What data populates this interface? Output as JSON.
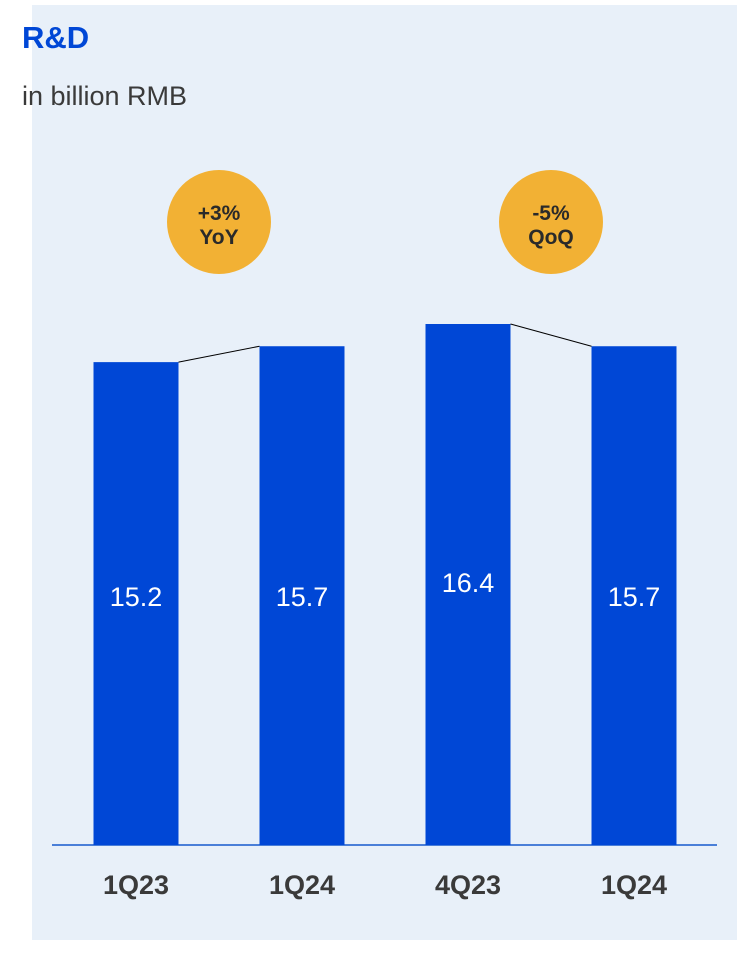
{
  "title": "R&D",
  "subtitle": "in billion RMB",
  "colors": {
    "bar": "#0047d6",
    "badge": "#f2b134",
    "panel": "#e8f0f9",
    "baseline": "#4a7fd8"
  },
  "chart_data": {
    "type": "bar",
    "title": "R&D",
    "subtitle": "in billion RMB",
    "categories": [
      "1Q23",
      "1Q24",
      "4Q23",
      "1Q24"
    ],
    "values": [
      15.2,
      15.7,
      16.4,
      15.7
    ],
    "value_labels": [
      "15.2",
      "15.7",
      "16.4",
      "15.7"
    ],
    "ylim": [
      0,
      16.4
    ],
    "comparisons": [
      {
        "line1": "+3%",
        "line2": "YoY",
        "from": 0,
        "to": 1
      },
      {
        "line1": "-5%",
        "line2": "QoQ",
        "from": 2,
        "to": 3
      }
    ]
  }
}
